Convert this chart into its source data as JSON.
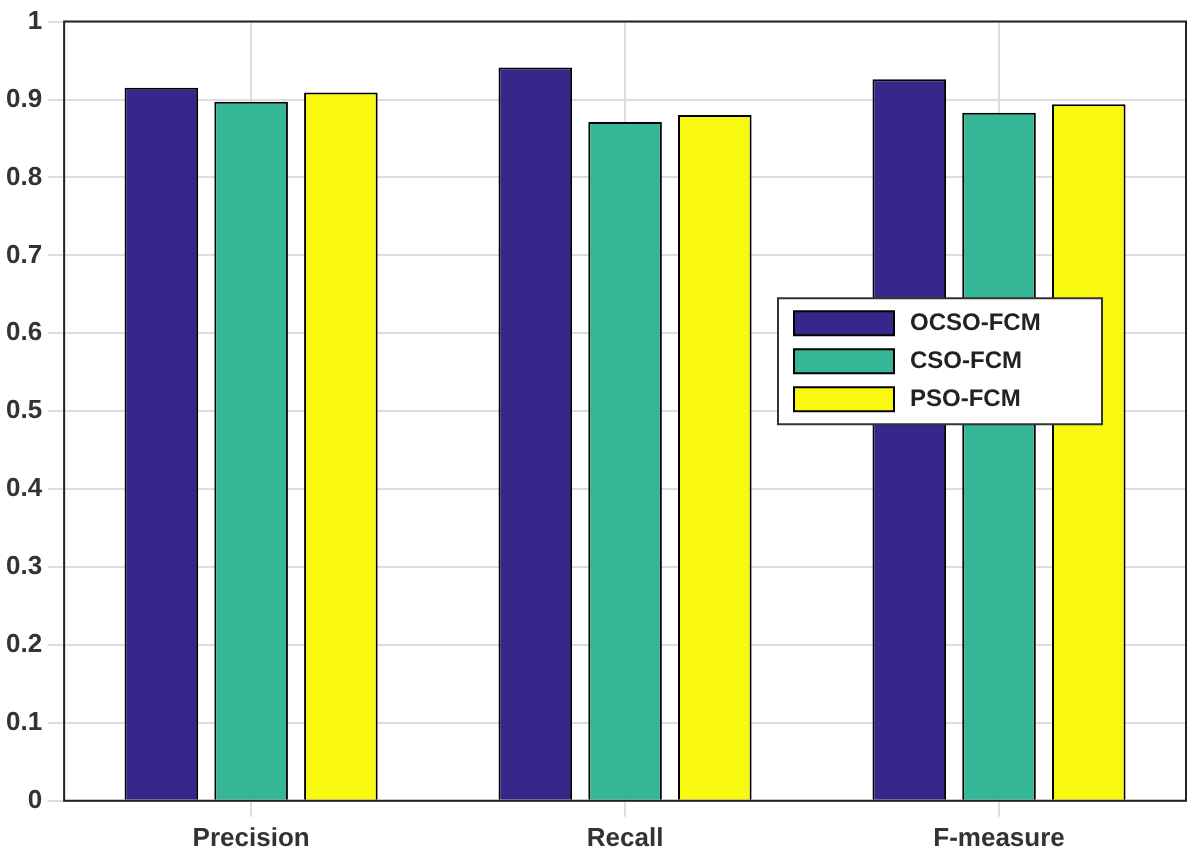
{
  "chart_data": {
    "type": "bar",
    "categories": [
      "Precision",
      "Recall",
      "F-measure"
    ],
    "series": [
      {
        "name": "OCSO-FCM",
        "color": "#35288a",
        "values": [
          0.915,
          0.941,
          0.926
        ]
      },
      {
        "name": "CSO-FCM",
        "color": "#35b797",
        "values": [
          0.897,
          0.871,
          0.883
        ]
      },
      {
        "name": "PSO-FCM",
        "color": "#f9f90f",
        "values": [
          0.909,
          0.88,
          0.894
        ]
      }
    ],
    "ylim": [
      0,
      1
    ],
    "yticks": [
      0,
      0.1,
      0.2,
      0.3,
      0.4,
      0.5,
      0.6,
      0.7,
      0.8,
      0.9,
      1
    ],
    "grid": true,
    "legend": "right"
  }
}
